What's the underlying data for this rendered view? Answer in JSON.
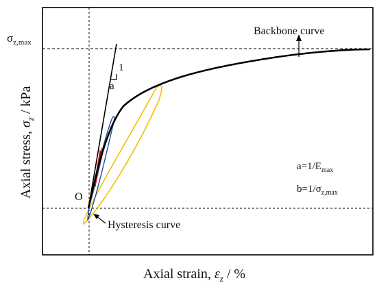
{
  "diagram": {
    "y_label": {
      "main": "Axial stress, ",
      "sym": "σ",
      "sub": "z",
      "unit": " / kPa"
    },
    "x_label": {
      "main": "Axial strain, ",
      "sym": "ε",
      "sub": "z",
      "unit": " / %"
    },
    "sigma_max": {
      "sym": "σ",
      "sub": "z,max"
    },
    "origin": "O",
    "slope_run": "1",
    "slope_rise": "a",
    "backbone_label": "Backbone curve",
    "hysteresis_label": "Hysteresis curve",
    "eq_a": {
      "lhs": "a=1/E",
      "sub": "max"
    },
    "eq_b": {
      "lhs": "b=1/σ",
      "sub": "z,max"
    }
  },
  "colors": {
    "backbone": "#000000",
    "outer_loop": "#f0c000",
    "mid_loop": "#1f4e9a",
    "small_loop": "#d40000"
  }
}
